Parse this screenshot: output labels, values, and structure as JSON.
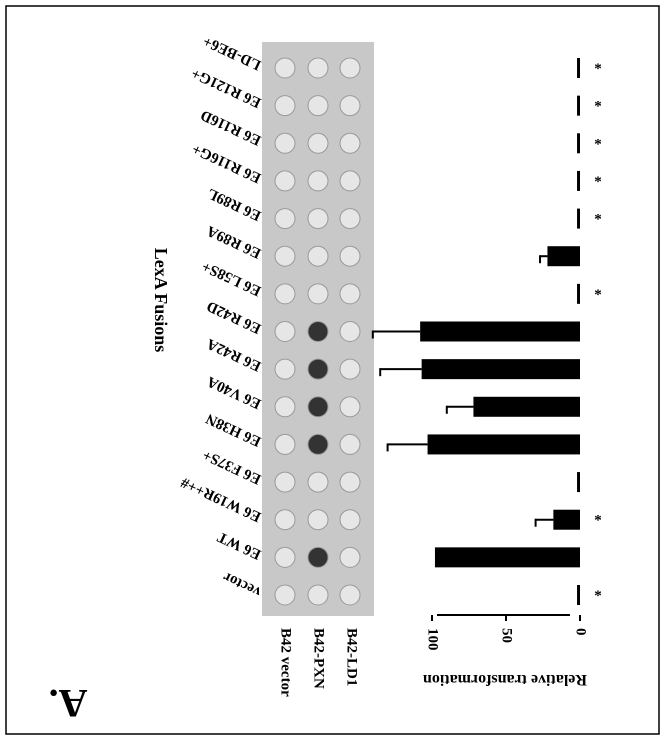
{
  "chart_data": {
    "type": "bar",
    "panel_label": "A.",
    "title": "LexA Fusions",
    "value_axis_label": "Relative transformation",
    "categories": [
      "vector",
      "E6 WT",
      "E6 W19R++#",
      "E6 F37S+",
      "E6 H38N",
      "E6 V40A",
      "E6 R42A",
      "E6 R42D",
      "E6 L58S+",
      "E6 R89A",
      "E6 R89L",
      "E6 R116G+",
      "E6 R116D",
      "E6 R121G+",
      "LD-BE6+"
    ],
    "values": [
      2,
      98,
      18,
      2,
      103,
      72,
      107,
      108,
      2,
      22,
      2,
      2,
      2,
      2,
      2
    ],
    "errors": [
      null,
      null,
      12,
      null,
      27,
      18,
      28,
      32,
      null,
      5,
      null,
      null,
      null,
      null,
      null
    ],
    "markers": [
      "*",
      null,
      "*",
      null,
      null,
      null,
      null,
      null,
      "*",
      null,
      "*",
      "*",
      "*",
      "*",
      "*"
    ],
    "assay_rows": [
      "B42 vector",
      "B42-PXN",
      "B42-LD1"
    ],
    "color": "#000000",
    "ylim": [
      0,
      100
    ],
    "yticks": [
      0,
      50,
      100
    ]
  }
}
